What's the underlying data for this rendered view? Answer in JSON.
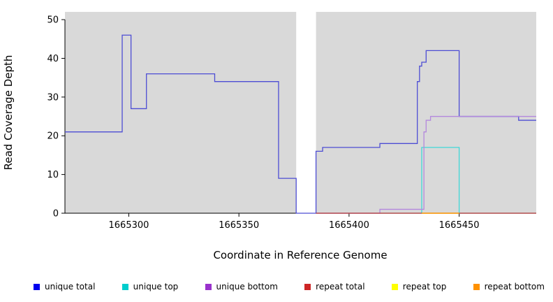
{
  "figure": {
    "background": "#ffffff",
    "plot_background": "#d9d9d9",
    "axis_color": "#000000"
  },
  "chart_data": {
    "type": "line",
    "subtype": "step",
    "title": "",
    "xlabel": "Coordinate in Reference Genome",
    "ylabel": "Read Coverage Depth",
    "xlim": [
      1665271,
      1665485
    ],
    "ylim": [
      0,
      52
    ],
    "x_ticks": [
      1665300,
      1665350,
      1665400,
      1665450
    ],
    "y_ticks": [
      0,
      10,
      20,
      30,
      40,
      50
    ],
    "grid": false,
    "legend_position": "bottom",
    "coverage_gap": [
      1665376,
      1665385
    ],
    "series": [
      {
        "name": "unique total",
        "color": "#4d4dd4",
        "points": [
          [
            1665271,
            21
          ],
          [
            1665297,
            46
          ],
          [
            1665301,
            27
          ],
          [
            1665308,
            36
          ],
          [
            1665339,
            34
          ],
          [
            1665368,
            9
          ],
          [
            1665376,
            0
          ],
          [
            1665385,
            16
          ],
          [
            1665388,
            17
          ],
          [
            1665414,
            18
          ],
          [
            1665431,
            34
          ],
          [
            1665432,
            38
          ],
          [
            1665433,
            39
          ],
          [
            1665435,
            42
          ],
          [
            1665450,
            25
          ],
          [
            1665477,
            24
          ],
          [
            1665485,
            24
          ]
        ]
      },
      {
        "name": "unique top",
        "color": "#40d8d8",
        "points": [
          [
            1665385,
            0
          ],
          [
            1665433,
            17
          ],
          [
            1665450,
            0
          ],
          [
            1665485,
            0
          ]
        ]
      },
      {
        "name": "unique bottom",
        "color": "#b388dd",
        "points": [
          [
            1665385,
            0
          ],
          [
            1665414,
            1
          ],
          [
            1665434,
            21
          ],
          [
            1665435,
            24
          ],
          [
            1665437,
            25
          ],
          [
            1665485,
            25
          ]
        ]
      },
      {
        "name": "repeat total",
        "color": "#c03030",
        "points": [
          [
            1665385,
            0
          ],
          [
            1665485,
            0
          ]
        ]
      },
      {
        "name": "repeat top",
        "color": "#ffff00",
        "points": [
          [
            1665433,
            0
          ],
          [
            1665450,
            0
          ]
        ]
      },
      {
        "name": "repeat bottom",
        "color": "#ff9100",
        "points": [
          [
            1665433,
            0
          ],
          [
            1665450,
            0
          ]
        ]
      }
    ]
  },
  "legend": {
    "items": [
      {
        "label": "unique total",
        "color": "#0000ee"
      },
      {
        "label": "unique top",
        "color": "#00cdcd"
      },
      {
        "label": "unique bottom",
        "color": "#9932cc"
      },
      {
        "label": "repeat total",
        "color": "#cd2626"
      },
      {
        "label": "repeat top",
        "color": "#ffff00"
      },
      {
        "label": "repeat bottom",
        "color": "#ff9100"
      }
    ]
  }
}
